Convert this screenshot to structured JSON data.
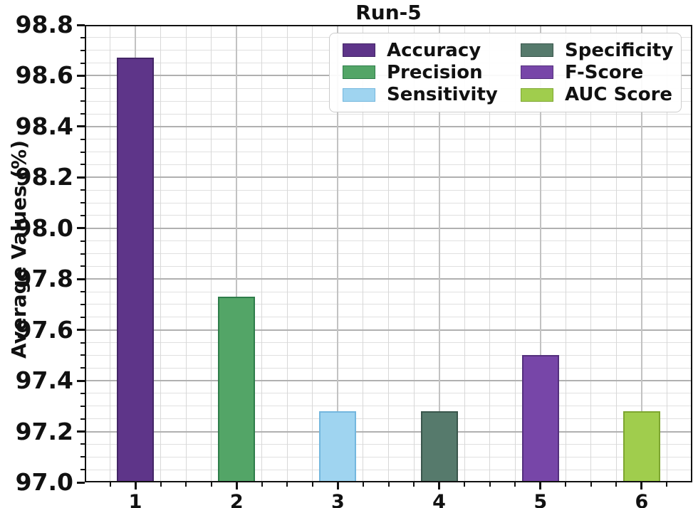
{
  "figure": {
    "title": "Run-5",
    "ylabel": "Average Values (%)"
  },
  "chart_data": {
    "type": "bar",
    "title": "Run-5",
    "xlabel": "",
    "ylabel": "Average Values (%)",
    "categories": [
      "1",
      "2",
      "3",
      "4",
      "5",
      "6"
    ],
    "bars": [
      {
        "category": "1",
        "name": "Accuracy",
        "value": 98.67,
        "fill": "#5e3589",
        "edge": "#432566"
      },
      {
        "category": "2",
        "name": "Precision",
        "value": 97.73,
        "fill": "#53a567",
        "edge": "#2e7d4a"
      },
      {
        "category": "3",
        "name": "Sensitivity",
        "value": 97.28,
        "fill": "#9fd4f0",
        "edge": "#74b7de"
      },
      {
        "category": "4",
        "name": "Specificity",
        "value": 97.28,
        "fill": "#567a6c",
        "edge": "#3a564c"
      },
      {
        "category": "5",
        "name": "F-Score",
        "value": 97.5,
        "fill": "#7746a8",
        "edge": "#54307d"
      },
      {
        "category": "6",
        "name": "AUC Score",
        "value": 97.28,
        "fill": "#a0cd4d",
        "edge": "#7da630"
      }
    ],
    "ylim": [
      97.0,
      98.8
    ],
    "y_major_step": 0.2,
    "y_minor_step": 0.05,
    "y_tick_decimals": 1,
    "x_minor_divisions": 4,
    "grid": true,
    "legend": {
      "position": "upper right",
      "columns": 2,
      "order": [
        "Accuracy",
        "Precision",
        "Sensitivity",
        "Specificity",
        "F-Score",
        "AUC Score"
      ]
    },
    "axis_color": "#111111",
    "tick_label_color": "#111111"
  }
}
